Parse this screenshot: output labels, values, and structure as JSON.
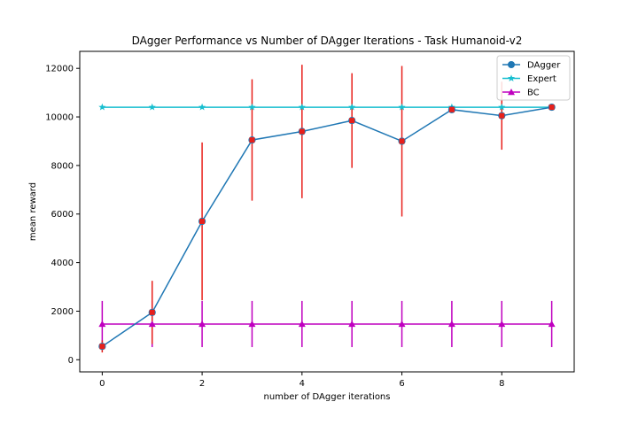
{
  "chart_data": {
    "type": "line",
    "title": "DAgger Performance vs Number of DAgger Iterations - Task Humanoid-v2",
    "xlabel": "number of DAgger iterations",
    "ylabel": "mean reward",
    "xlim": [
      -0.45,
      9.45
    ],
    "ylim": [
      -500,
      12700
    ],
    "xticks": [
      0,
      2,
      4,
      6,
      8
    ],
    "yticks": [
      0,
      2000,
      4000,
      6000,
      8000,
      10000,
      12000
    ],
    "grid": false,
    "legend_position": "top-right",
    "x": [
      0,
      1,
      2,
      3,
      4,
      5,
      6,
      7,
      8,
      9
    ],
    "series": [
      {
        "name": "DAgger",
        "color": "#1f77b4",
        "marker": "circle",
        "values": [
          550,
          1950,
          5700,
          9050,
          9400,
          9850,
          9000,
          10300,
          10050,
          10400
        ],
        "errors": [
          250,
          1300,
          3250,
          2500,
          2750,
          1950,
          3100,
          100,
          1400,
          50
        ],
        "error_color": "#e8201b"
      },
      {
        "name": "Expert",
        "color": "#17becf",
        "marker": "star",
        "values": [
          10400,
          10400,
          10400,
          10400,
          10400,
          10400,
          10400,
          10400,
          10400,
          10400
        ]
      },
      {
        "name": "BC",
        "color": "#bf00bf",
        "marker": "triangle",
        "values": [
          1470,
          1470,
          1470,
          1470,
          1470,
          1470,
          1470,
          1470,
          1470,
          1470
        ],
        "errors": [
          950,
          950,
          950,
          950,
          950,
          950,
          950,
          950,
          950,
          950
        ],
        "error_color": "#bf00bf"
      }
    ]
  }
}
